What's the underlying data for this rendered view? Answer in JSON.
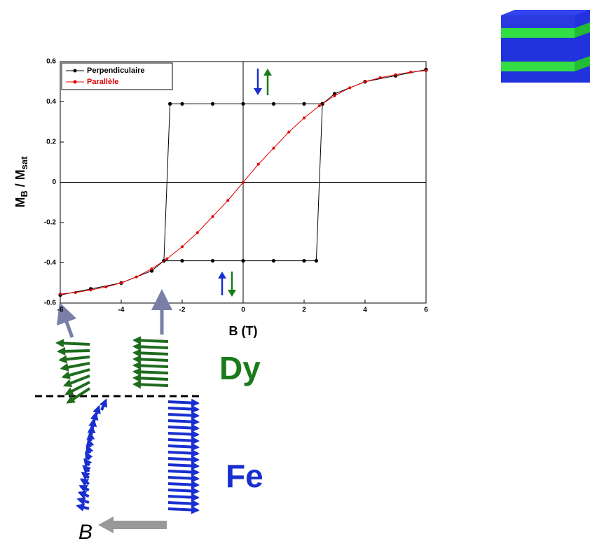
{
  "chart_data": {
    "type": "line",
    "ylabel": [
      "M",
      "B",
      " / M",
      "sat"
    ],
    "xlabel": "B (T)",
    "xlim": [
      -6,
      6
    ],
    "ylim": [
      -0.6,
      0.6
    ],
    "xticks": [
      -6,
      -4,
      -2,
      0,
      2,
      4,
      6
    ],
    "yticks": [
      -0.6,
      -0.4,
      -0.2,
      0,
      0.2,
      0.4,
      0.6
    ],
    "legend": "top-left",
    "series": [
      {
        "name": "Perpendiculaire",
        "color": "#000000",
        "x": [
          6,
          5,
          4,
          3,
          2.6,
          2,
          1,
          0,
          -1,
          -2,
          -2.4,
          -2.6,
          -3,
          -4,
          -5,
          -6,
          -5,
          -4,
          -3,
          -2.6,
          -2,
          -1,
          0,
          1,
          2,
          2.4,
          2.6,
          3,
          4,
          5,
          6
        ],
        "values": [
          0.56,
          0.53,
          0.5,
          0.44,
          0.39,
          0.39,
          0.39,
          0.39,
          0.39,
          0.39,
          0.39,
          -0.39,
          -0.44,
          -0.5,
          -0.53,
          -0.56,
          -0.53,
          -0.5,
          -0.44,
          -0.39,
          -0.39,
          -0.39,
          -0.39,
          -0.39,
          -0.39,
          -0.39,
          0.39,
          0.44,
          0.5,
          0.53,
          0.56
        ]
      },
      {
        "name": "Parallèle",
        "color": "#e00000",
        "x": [
          -6,
          -5.5,
          -5,
          -4.5,
          -4,
          -3.5,
          -3,
          -2.5,
          -2,
          -1.5,
          -1,
          -0.5,
          0,
          0.5,
          1,
          1.5,
          2,
          2.5,
          3,
          3.5,
          4,
          4.5,
          5,
          5.5,
          6
        ],
        "values": [
          -0.555,
          -0.548,
          -0.535,
          -0.52,
          -0.5,
          -0.47,
          -0.43,
          -0.38,
          -0.32,
          -0.25,
          -0.17,
          -0.09,
          0,
          0.09,
          0.17,
          0.25,
          0.32,
          0.38,
          0.43,
          0.47,
          0.5,
          0.52,
          0.535,
          0.548,
          0.555
        ]
      }
    ]
  },
  "diagram": {
    "upper_label": "Dy",
    "lower_label": "Fe",
    "field_label": "B"
  }
}
